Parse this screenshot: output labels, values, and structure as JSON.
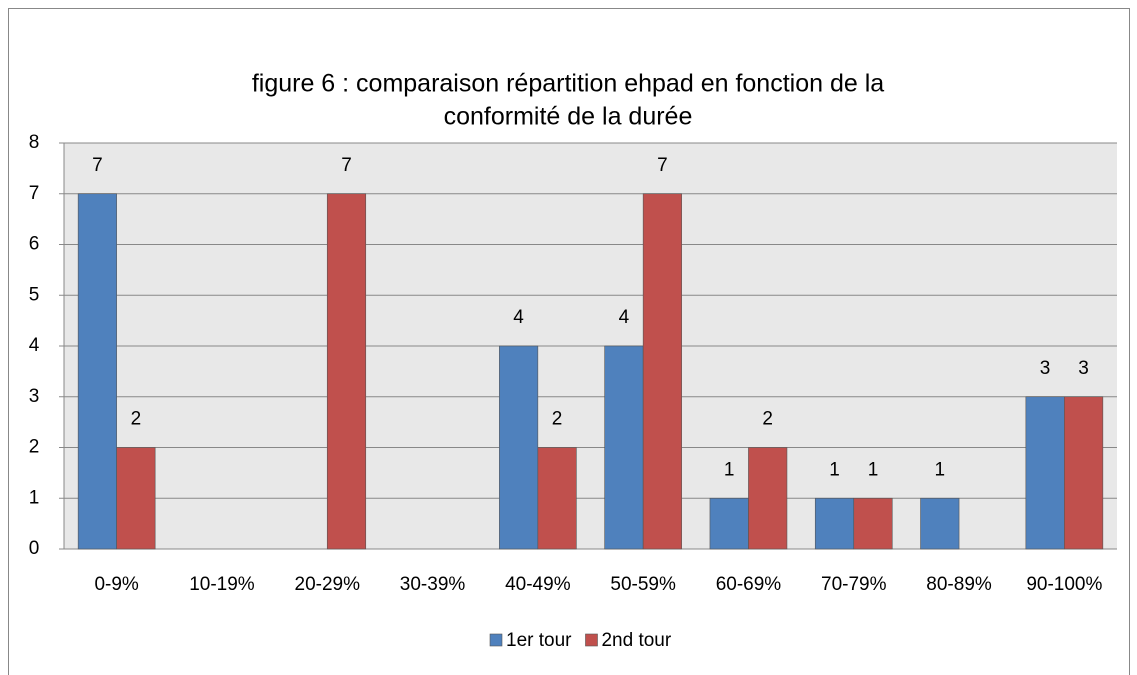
{
  "chart_data": {
    "type": "bar",
    "title": [
      "figure 6 : comparaison répartition ehpad en fonction de la",
      "conformité de la durée"
    ],
    "categories": [
      "0-9%",
      "10-19%",
      "20-29%",
      "30-39%",
      "40-49%",
      "50-59%",
      "60-69%",
      "70-79%",
      "80-89%",
      "90-100%"
    ],
    "series": [
      {
        "name": "1er tour",
        "color": "#4f81bd",
        "values": [
          7,
          null,
          null,
          null,
          4,
          4,
          1,
          1,
          1,
          3
        ]
      },
      {
        "name": "2nd tour",
        "color": "#c0504d",
        "values": [
          2,
          null,
          7,
          null,
          2,
          7,
          2,
          1,
          null,
          3
        ]
      }
    ],
    "ylim": [
      0,
      8
    ],
    "yticks": [
      0,
      1,
      2,
      3,
      4,
      5,
      6,
      7,
      8
    ],
    "grid": true,
    "legend": "bottom"
  }
}
